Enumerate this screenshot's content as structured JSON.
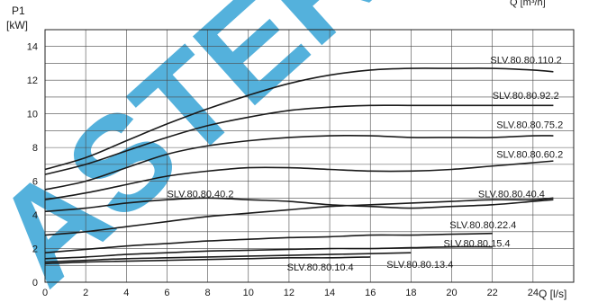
{
  "chart_data": {
    "type": "line",
    "y_axis_title": "P1",
    "y_axis_unit": "[kW]",
    "x_axis_label": "Q [l/s]",
    "top_right_label": "Q [m³/h]",
    "xlim": [
      0,
      26
    ],
    "ylim": [
      0,
      15
    ],
    "x_ticks": [
      0,
      2,
      4,
      6,
      8,
      10,
      12,
      14,
      16,
      18,
      20,
      22,
      24
    ],
    "y_ticks": [
      0,
      2,
      4,
      6,
      8,
      10,
      12,
      14
    ],
    "grid": true,
    "watermark": {
      "text": "ASTER",
      "color": "#41a9d8"
    },
    "line_color": "#1a1a1a",
    "series": [
      {
        "name": "SLV.80.80.110.2",
        "x": [
          0,
          2,
          4,
          6,
          8,
          10,
          12,
          14,
          16,
          18,
          20,
          22,
          24,
          25
        ],
        "y": [
          6.7,
          7.4,
          8.4,
          9.4,
          10.3,
          11.1,
          11.8,
          12.3,
          12.6,
          12.7,
          12.7,
          12.7,
          12.6,
          12.5
        ]
      },
      {
        "name": "SLV.80.80.92.2",
        "x": [
          0,
          2,
          4,
          6,
          8,
          10,
          12,
          14,
          16,
          18,
          20,
          22,
          24,
          25
        ],
        "y": [
          6.4,
          7.0,
          7.8,
          8.6,
          9.3,
          9.8,
          10.2,
          10.4,
          10.5,
          10.5,
          10.5,
          10.5,
          10.5,
          10.5
        ]
      },
      {
        "name": "SLV.80.80.75.2",
        "x": [
          0,
          2,
          4,
          6,
          8,
          10,
          12,
          14,
          16,
          18,
          20,
          22,
          24,
          25
        ],
        "y": [
          5.5,
          6.0,
          6.8,
          7.6,
          8.1,
          8.4,
          8.6,
          8.7,
          8.7,
          8.6,
          8.6,
          8.6,
          8.7,
          8.7
        ]
      },
      {
        "name": "SLV.80.80.60.2",
        "x": [
          0,
          2,
          4,
          6,
          8,
          10,
          12,
          14,
          16,
          18,
          20,
          22,
          24,
          25
        ],
        "y": [
          4.9,
          5.3,
          5.8,
          6.3,
          6.6,
          6.8,
          6.8,
          6.7,
          6.6,
          6.6,
          6.7,
          6.9,
          7.1,
          7.2
        ]
      },
      {
        "name": "SLV.80.80.40.2",
        "x": [
          0,
          2,
          4,
          6,
          8,
          10,
          12,
          14,
          16,
          18,
          20,
          22,
          24,
          25
        ],
        "y": [
          4.2,
          4.4,
          4.7,
          4.9,
          5.0,
          4.9,
          4.8,
          4.6,
          4.5,
          4.4,
          4.5,
          4.6,
          4.8,
          4.9
        ]
      },
      {
        "name": "SLV.80.80.40.4",
        "x": [
          0,
          2,
          4,
          6,
          8,
          10,
          12,
          14,
          16,
          18,
          20,
          22,
          24,
          25
        ],
        "y": [
          2.8,
          3.0,
          3.3,
          3.6,
          3.9,
          4.1,
          4.3,
          4.5,
          4.6,
          4.7,
          4.8,
          4.9,
          4.9,
          5.0
        ]
      },
      {
        "name": "SLV.80.80.22.4",
        "x": [
          0,
          2,
          4,
          6,
          8,
          10,
          12,
          14,
          16,
          18,
          20,
          22
        ],
        "y": [
          1.75,
          1.95,
          2.15,
          2.3,
          2.45,
          2.55,
          2.65,
          2.7,
          2.8,
          2.8,
          2.85,
          2.9
        ]
      },
      {
        "name": "SLV.80.80.15.4",
        "x": [
          0,
          2,
          4,
          6,
          8,
          10,
          12,
          14,
          16,
          18,
          20,
          22
        ],
        "y": [
          1.4,
          1.5,
          1.65,
          1.75,
          1.85,
          1.9,
          1.95,
          2.0,
          2.0,
          2.05,
          2.1,
          2.1
        ]
      },
      {
        "name": "SLV.80.80.13.4",
        "x": [
          0,
          2,
          4,
          6,
          8,
          10,
          12,
          14,
          16,
          18
        ],
        "y": [
          1.2,
          1.3,
          1.4,
          1.45,
          1.5,
          1.55,
          1.6,
          1.65,
          1.7,
          1.75
        ]
      },
      {
        "name": "SLV.80.80.10.4",
        "x": [
          0,
          2,
          4,
          6,
          8,
          10,
          12,
          14,
          16
        ],
        "y": [
          1.1,
          1.2,
          1.25,
          1.3,
          1.35,
          1.4,
          1.45,
          1.45,
          1.5
        ]
      }
    ],
    "labels": [
      {
        "text": "SLV.80.80.110.2",
        "x": 21.9,
        "y": 13.0,
        "anchor": "start"
      },
      {
        "text": "SLV.80.80.92.2",
        "x": 22.0,
        "y": 10.9,
        "anchor": "start"
      },
      {
        "text": "SLV.80.80.75.2",
        "x": 22.2,
        "y": 9.15,
        "anchor": "start"
      },
      {
        "text": "SLV.80.80.60.2",
        "x": 22.2,
        "y": 7.4,
        "anchor": "start"
      },
      {
        "text": "SLV.80.80.40.2",
        "x": 6.0,
        "y": 5.05,
        "anchor": "start"
      },
      {
        "text": "SLV.80.80.40.4",
        "x": 21.3,
        "y": 5.05,
        "anchor": "start"
      },
      {
        "text": "SLV.80.80.22.4",
        "x": 19.9,
        "y": 3.2,
        "anchor": "start"
      },
      {
        "text": "SLV.80.80.15.4",
        "x": 19.6,
        "y": 2.1,
        "anchor": "start"
      },
      {
        "text": "SLV.80.80.13.4",
        "x": 16.8,
        "y": 0.85,
        "anchor": "start"
      },
      {
        "text": "SLV.80.80.10.4",
        "x": 11.9,
        "y": 0.7,
        "anchor": "start"
      }
    ]
  }
}
